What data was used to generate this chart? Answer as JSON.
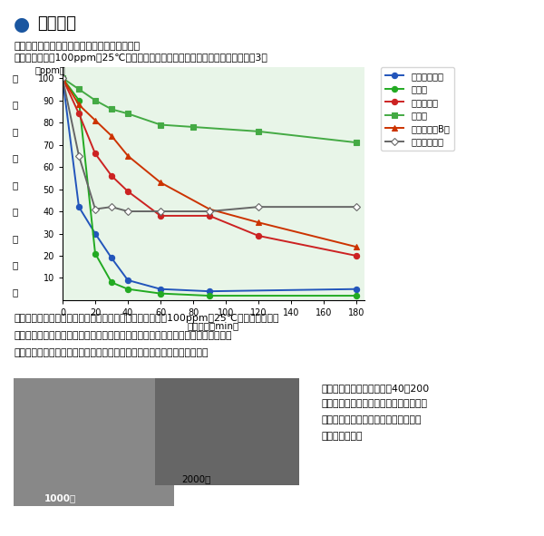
{
  "title_bullet_color": "#1a56a0",
  "title_text": "消臭性能",
  "subtitle1": "他の消臭材とのアンモニア消臭測定比較テスト",
  "subtitle2": "アンモニア濃度100ppm（25℃）に対する濃度吸着低下による消臭実験測定（表3）",
  "ylabel_chars": [
    "ア",
    "ン",
    "モ",
    "ニ",
    "ア",
    "残",
    "存",
    "濃",
    "度"
  ],
  "ylabel_unit": "（ppm）",
  "xlabel": "経過時間（min）",
  "page_bg": "#ffffff",
  "plot_bg": "#e8f5e8",
  "ylim": [
    0,
    105
  ],
  "xlim": [
    0,
    185
  ],
  "yticks": [
    10.0,
    20.0,
    30.0,
    40.0,
    50.0,
    60.0,
    70.0,
    80.0,
    90.0,
    100.0
  ],
  "xticks": [
    0,
    20,
    40,
    60,
    80,
    100,
    120,
    140,
    160,
    180
  ],
  "series": [
    {
      "label": "稚内珪藻頁岩",
      "color": "#2255bb",
      "marker": "o",
      "marker_fill": "#2255bb",
      "marker_edge": "#2255bb",
      "x": [
        0,
        10,
        20,
        30,
        40,
        60,
        90,
        180
      ],
      "y": [
        100,
        42,
        30,
        19,
        9,
        5,
        4,
        5
      ]
    },
    {
      "label": "珪藻土",
      "color": "#22aa22",
      "marker": "o",
      "marker_fill": "#22aa22",
      "marker_edge": "#22aa22",
      "x": [
        0,
        10,
        20,
        30,
        40,
        60,
        90,
        180
      ],
      "y": [
        100,
        90,
        21,
        8,
        5,
        3,
        2,
        2
      ]
    },
    {
      "label": "ゼオライト",
      "color": "#cc2222",
      "marker": "o",
      "marker_fill": "#cc2222",
      "marker_edge": "#cc2222",
      "x": [
        0,
        10,
        20,
        30,
        40,
        60,
        90,
        120,
        180
      ],
      "y": [
        100,
        84,
        66,
        56,
        49,
        38,
        38,
        29,
        20
      ]
    },
    {
      "label": "活性炭",
      "color": "#44aa44",
      "marker": "s",
      "marker_fill": "#44aa44",
      "marker_edge": "#44aa44",
      "x": [
        0,
        10,
        20,
        30,
        40,
        60,
        80,
        120,
        180
      ],
      "y": [
        100,
        95,
        90,
        86,
        84,
        79,
        78,
        76,
        71
      ]
    },
    {
      "label": "シリカゲルB型",
      "color": "#cc3300",
      "marker": "^",
      "marker_fill": "#cc3300",
      "marker_edge": "#cc3300",
      "x": [
        0,
        10,
        20,
        30,
        40,
        60,
        90,
        120,
        180
      ],
      "y": [
        100,
        88,
        81,
        74,
        65,
        53,
        41,
        35,
        24
      ]
    },
    {
      "label": "セピオライト",
      "color": "#666666",
      "marker": "D",
      "marker_fill": "white",
      "marker_edge": "#666666",
      "x": [
        0,
        10,
        20,
        30,
        40,
        60,
        90,
        120,
        180
      ],
      "y": [
        100,
        65,
        41,
        42,
        40,
        40,
        40,
        42,
        42
      ]
    }
  ],
  "bottom_text1": "珪藻岩（稚内珪藻頁岩）と他の消臭材が、アンモニア濃度100ppm（25℃）に対する濃度",
  "bottom_text2": "吸着低減による消臭実験の測定比較図。珪藻岩は他の消臭材よりも急速に吸着し、",
  "bottom_text3": "短時間で濃度低減をおこなう消臭機能が抜群であることを示しています。",
  "right_text1": "珪藻岩は自然の無数の孔（40〜200",
  "right_text2": "ナノメートル）を持つ多孔質材で、湿気",
  "right_text3": "や化学物質などを吸着保持する性質を",
  "right_text4": "持っています。",
  "label_1000": "1000倍",
  "label_2000": "2000倍"
}
